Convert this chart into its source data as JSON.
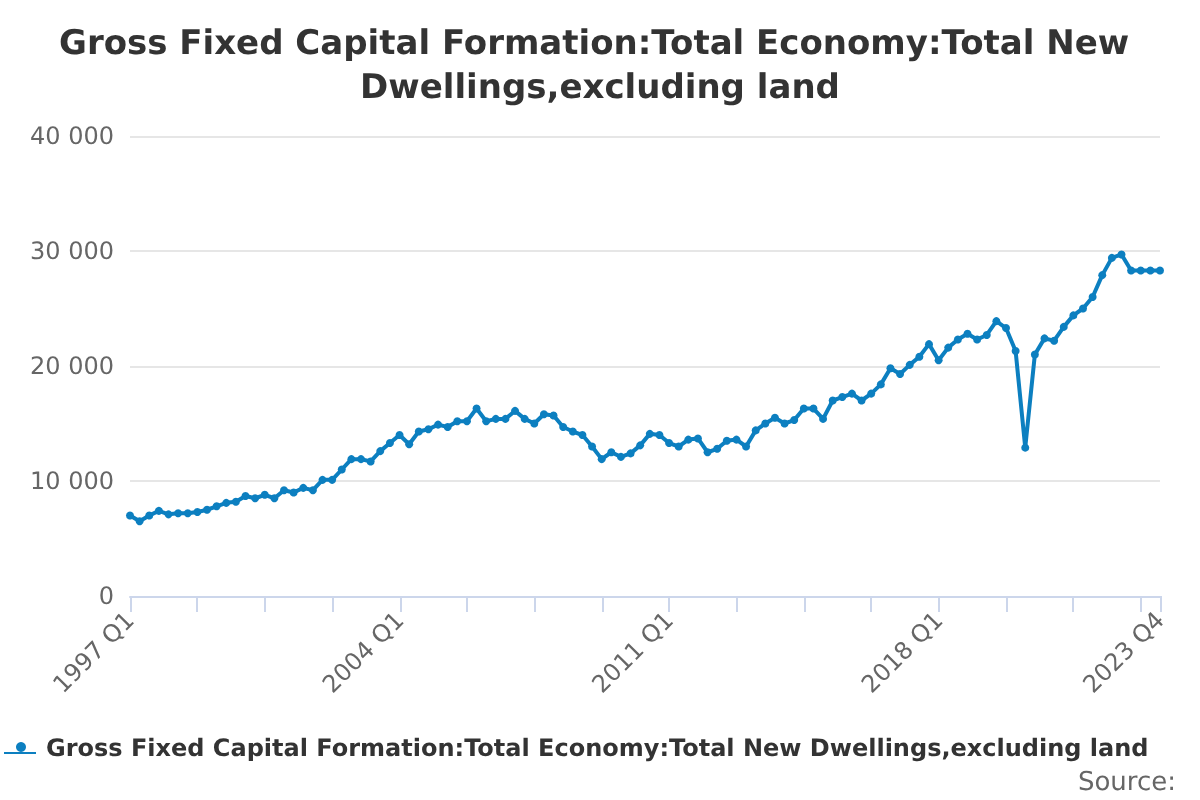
{
  "chart_data": {
    "type": "line",
    "title": "Gross Fixed Capital Formation:Total Economy:Total New Dwellings,excluding land",
    "categories": [
      "1997 Q1",
      null,
      null,
      null,
      null,
      null,
      null,
      null,
      null,
      null,
      null,
      null,
      null,
      null,
      null,
      null,
      null,
      null,
      null,
      null,
      null,
      null,
      null,
      null,
      null,
      null,
      null,
      null,
      "2004 Q1",
      null,
      null,
      null,
      null,
      null,
      null,
      null,
      null,
      null,
      null,
      null,
      null,
      null,
      null,
      null,
      null,
      null,
      null,
      null,
      null,
      null,
      null,
      null,
      null,
      null,
      null,
      null,
      "2011 Q1",
      null,
      null,
      null,
      null,
      null,
      null,
      null,
      null,
      null,
      null,
      null,
      null,
      null,
      null,
      null,
      null,
      null,
      null,
      null,
      null,
      null,
      null,
      null,
      null,
      null,
      null,
      null,
      "2018 Q1",
      null,
      null,
      null,
      null,
      null,
      null,
      null,
      null,
      null,
      null,
      null,
      null,
      null,
      null,
      null,
      null,
      null,
      null,
      null,
      null,
      null,
      null,
      "2023 Q4"
    ],
    "series": [
      {
        "name": "Gross Fixed Capital Formation:Total Economy:Total New Dwellings,excluding land",
        "color": "#0c7fc0",
        "values": [
          7000,
          6500,
          7000,
          7400,
          7100,
          7200,
          7200,
          7300,
          7500,
          7800,
          8100,
          8200,
          8700,
          8500,
          8800,
          8500,
          9200,
          9000,
          9400,
          9200,
          10100,
          10100,
          11000,
          11900,
          11900,
          11700,
          12600,
          13300,
          14000,
          13200,
          14300,
          14500,
          14900,
          14700,
          15200,
          15200,
          16300,
          15200,
          15400,
          15400,
          16100,
          15400,
          15000,
          15800,
          15700,
          14700,
          14300,
          14000,
          13000,
          11900,
          12500,
          12100,
          12400,
          13100,
          14100,
          14000,
          13300,
          13000,
          13600,
          13700,
          12500,
          12800,
          13500,
          13600,
          13000,
          14400,
          15000,
          15500,
          15000,
          15300,
          16300,
          16300,
          15400,
          17000,
          17300,
          17600,
          17000,
          17600,
          18400,
          19800,
          19300,
          20100,
          20800,
          21900,
          20500,
          21600,
          22300,
          22800,
          22300,
          22700,
          23900,
          23300,
          21300,
          12900,
          21000,
          22400,
          22200,
          23400,
          24400,
          25000,
          26000,
          27900,
          29400,
          29700,
          28300,
          28300,
          28300,
          28300
        ]
      }
    ],
    "ylim": [
      0,
      40000
    ],
    "yticks": [
      0,
      {
        "value": 10000,
        "label": "10 000"
      },
      {
        "value": 20000,
        "label": "20 000"
      },
      {
        "value": 30000,
        "label": "30 000"
      },
      {
        "value": 40000,
        "label": "40 000"
      }
    ],
    "grid": "y",
    "legend": "bottom",
    "marker": "circle",
    "line_style": "solid",
    "annotations": [
      "Source:"
    ]
  }
}
